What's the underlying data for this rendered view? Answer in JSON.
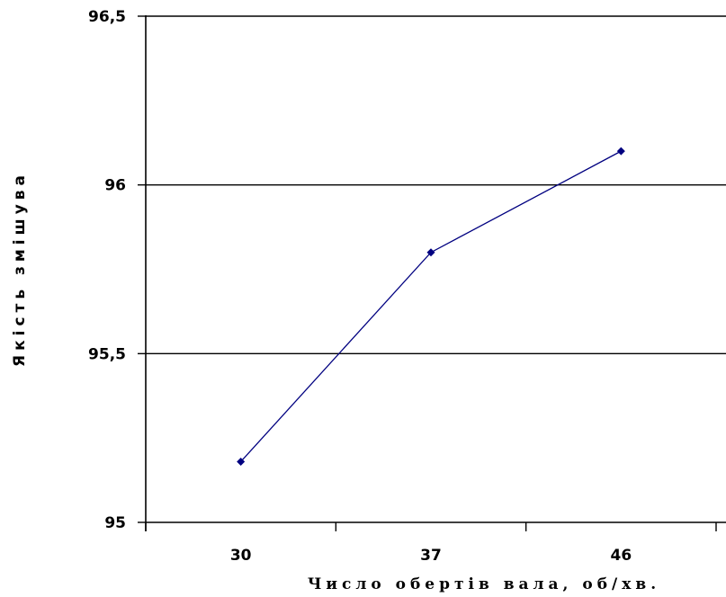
{
  "chart_data": {
    "type": "line",
    "title": "",
    "xlabel": "Число обертів вала, об/хв.",
    "ylabel": "Якість змішува",
    "categories": [
      "30",
      "37",
      "46"
    ],
    "y_ticks": [
      {
        "value": 95,
        "label": "95"
      },
      {
        "value": 95.5,
        "label": "95,5"
      },
      {
        "value": 96,
        "label": "96"
      },
      {
        "value": 96.5,
        "label": "96,5"
      }
    ],
    "ylim": [
      95,
      96.5
    ],
    "grid": "horizontal",
    "legend": "none",
    "series": [
      {
        "values": [
          95.18,
          95.8,
          96.1
        ],
        "color": "#000080"
      }
    ]
  }
}
